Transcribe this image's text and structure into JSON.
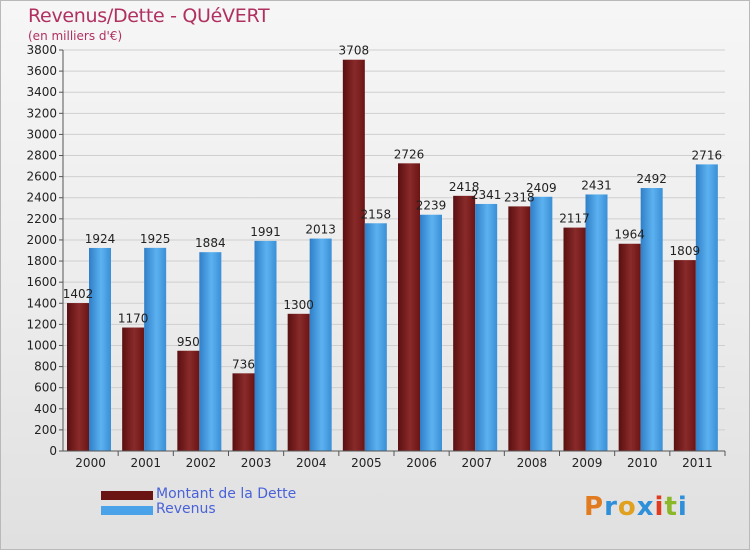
{
  "title": "Revenus/Dette - QUéVERT",
  "subtitle": "(en milliers d'€)",
  "chart_data": {
    "type": "bar",
    "categories": [
      "2000",
      "2001",
      "2002",
      "2003",
      "2004",
      "2005",
      "2006",
      "2007",
      "2008",
      "2009",
      "2010",
      "2011"
    ],
    "series": [
      {
        "name": "Montant de la Dette",
        "values": [
          1402,
          1170,
          950,
          736,
          1300,
          3708,
          2726,
          2418,
          2318,
          2117,
          1964,
          1809
        ],
        "color": "#7a1f1f"
      },
      {
        "name": "Revenus",
        "values": [
          1924,
          1925,
          1884,
          1991,
          2013,
          2158,
          2239,
          2341,
          2409,
          2431,
          2492,
          2716
        ],
        "color": "#4aa3e8"
      }
    ],
    "yticks": [
      0,
      200,
      400,
      600,
      800,
      1000,
      1200,
      1400,
      1600,
      1800,
      2000,
      2200,
      2400,
      2600,
      2800,
      3000,
      3200,
      3400,
      3600,
      3800
    ],
    "ylim": [
      0,
      3800
    ],
    "grid": true,
    "legend": "bottom-left"
  },
  "logo": {
    "text": "Proxiti",
    "colors": [
      "#e07b20",
      "#2f8fd8",
      "#e0a020",
      "#2f8fd8",
      "#e03a20",
      "#8ab828",
      "#2f8fd8"
    ]
  }
}
